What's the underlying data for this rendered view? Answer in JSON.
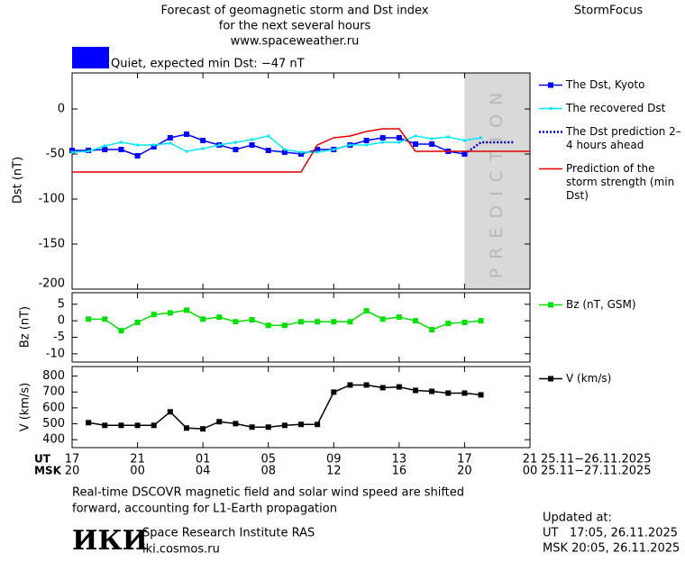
{
  "header": {
    "title": "Forecast of geomagnetic storm and Dst index",
    "subtitle": "for the next several hours",
    "url": "www.spaceweather.ru",
    "brand": "StormFocus",
    "status": {
      "color": "#0000ff",
      "label": "Quiet, expected min Dst: −47 nT"
    }
  },
  "chart_data": [
    {
      "type": "line",
      "y_label": "Dst (nT)",
      "xlim": [
        0,
        28
      ],
      "ylim": [
        -200,
        40
      ],
      "yticks": [
        0,
        -50,
        -100,
        -150,
        -200
      ],
      "shade": {
        "x": [
          24,
          28
        ],
        "label": "PREDICTION",
        "color": "#d9d9d9"
      },
      "series": [
        {
          "name": "The Dst, Kyoto",
          "color": "#0000ff",
          "marker": "square",
          "dash": false,
          "x": [
            0,
            1,
            2,
            3,
            4,
            5,
            6,
            7,
            8,
            9,
            10,
            11,
            12,
            13,
            14,
            15,
            16,
            17,
            18,
            19,
            20,
            21,
            22,
            23,
            24
          ],
          "values": [
            -46,
            -46,
            -45,
            -45,
            -52,
            -42,
            -32,
            -28,
            -35,
            -40,
            -45,
            -40,
            -46,
            -48,
            -50,
            -45,
            -45,
            -40,
            -35,
            -32,
            -32,
            -39,
            -39,
            -47,
            -50
          ]
        },
        {
          "name": "The recovered Dst",
          "color": "#00e8ff",
          "marker": "dot",
          "dash": false,
          "x": [
            0,
            1,
            2,
            3,
            4,
            5,
            6,
            7,
            8,
            9,
            10,
            11,
            12,
            13,
            14,
            15,
            16,
            17,
            18,
            19,
            20,
            21,
            22,
            23,
            24,
            25
          ],
          "values": [
            -48,
            -47,
            -41,
            -37,
            -40,
            -40,
            -38,
            -47,
            -44,
            -40,
            -37,
            -34,
            -30,
            -45,
            -48,
            -48,
            -45,
            -40,
            -40,
            -37,
            -37,
            -30,
            -33,
            -31,
            -35,
            -32
          ]
        },
        {
          "name": "The Dst prediction 2–4 hours ahead",
          "color": "#0000cc",
          "marker": "none",
          "dash": true,
          "x": [
            24,
            25,
            27
          ],
          "values": [
            -50,
            -37,
            -37
          ]
        },
        {
          "name": "Prediction of the storm strength (min Dst)",
          "color": "#e00000",
          "marker": "none",
          "dash": false,
          "x": [
            0,
            14,
            15,
            16,
            17,
            18,
            19,
            20,
            21,
            28
          ],
          "values": [
            -70,
            -70,
            -40,
            -32,
            -30,
            -25,
            -22,
            -22,
            -47,
            -47
          ]
        }
      ]
    },
    {
      "type": "line",
      "y_label": "Bz (nT)",
      "xlim": [
        0,
        28
      ],
      "ylim": [
        -12.5,
        8.5
      ],
      "yticks": [
        5,
        0,
        -5,
        -10
      ],
      "series": [
        {
          "name": "Bz (nT, GSM)",
          "color": "#00e000",
          "marker": "square",
          "dash": false,
          "x": [
            1,
            2,
            3,
            4,
            5,
            6,
            7,
            8,
            9,
            10,
            11,
            12,
            13,
            14,
            15,
            16,
            17,
            18,
            19,
            20,
            21,
            22,
            23,
            24,
            25
          ],
          "values": [
            0.5,
            0.5,
            -3,
            -0.5,
            1.9,
            2.4,
            3.2,
            0.5,
            1.1,
            -0.3,
            0.3,
            -1.4,
            -1.4,
            -0.3,
            -0.3,
            -0.3,
            -0.3,
            3,
            0.5,
            1.1,
            0,
            -2.7,
            -0.8,
            -0.5,
            0
          ]
        }
      ]
    },
    {
      "type": "line",
      "y_label": "V (km/s)",
      "xlim": [
        0,
        28
      ],
      "ylim": [
        350,
        860
      ],
      "yticks": [
        800,
        700,
        600,
        500,
        400
      ],
      "series": [
        {
          "name": "V (km/s)",
          "color": "#000000",
          "marker": "square",
          "dash": false,
          "x": [
            1,
            2,
            3,
            4,
            5,
            6,
            7,
            8,
            9,
            10,
            11,
            12,
            13,
            14,
            15,
            16,
            17,
            18,
            19,
            20,
            21,
            22,
            23,
            24,
            25
          ],
          "values": [
            507,
            490,
            490,
            490,
            490,
            575,
            473,
            468,
            513,
            501,
            479,
            479,
            490,
            496,
            496,
            699,
            744,
            744,
            727,
            732,
            710,
            704,
            693,
            693,
            682
          ]
        }
      ],
      "x_row_labels": [
        "UT",
        "MSK"
      ],
      "xticks": [
        {
          "value": 0,
          "label": "17"
        },
        {
          "value": 4,
          "label": "21"
        },
        {
          "value": 8,
          "label": "01"
        },
        {
          "value": 12,
          "label": "05"
        },
        {
          "value": 16,
          "label": "09"
        },
        {
          "value": 20,
          "label": "13"
        },
        {
          "value": 24,
          "label": "17"
        },
        {
          "value": 28,
          "label": "21"
        }
      ],
      "xticks_msk": [
        {
          "value": 0,
          "label": "20"
        },
        {
          "value": 4,
          "label": "00"
        },
        {
          "value": 8,
          "label": "04"
        },
        {
          "value": 12,
          "label": "08"
        },
        {
          "value": 16,
          "label": "12"
        },
        {
          "value": 20,
          "label": "16"
        },
        {
          "value": 24,
          "label": "20"
        },
        {
          "value": 28,
          "label": "00"
        }
      ],
      "date_ranges": [
        "25.11−26.11.2025",
        "25.11−27.11.2025"
      ]
    }
  ],
  "footer": {
    "note": [
      "Real-time DSCOVR magnetic field and solar wind speed are shifted",
      "forward, accounting for L1-Earth propagation"
    ],
    "logo": "ИКИ",
    "institute": "Space Research Institute RAS",
    "site": "iki.cosmos.ru",
    "updated": [
      "Updated at:",
      "UT   17:05, 26.11.2025",
      "MSK 20:05, 26.11.2025"
    ]
  }
}
